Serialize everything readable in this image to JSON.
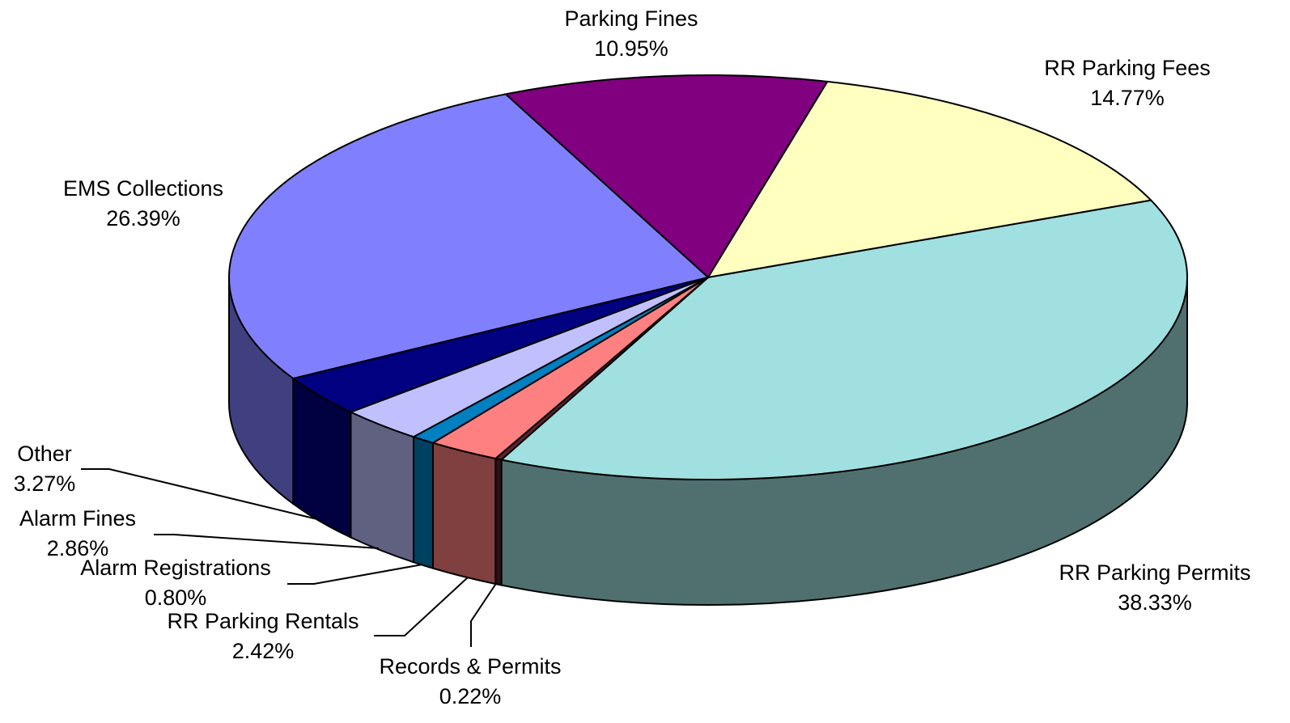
{
  "chart_data": {
    "type": "pie3d",
    "categories": [
      "Parking Fines",
      "RR Parking Fees",
      "RR Parking Permits",
      "Records & Permits",
      "RR Parking Rentals",
      "Alarm Registrations",
      "Alarm Fines",
      "Other",
      "EMS Collections"
    ],
    "values": [
      10.95,
      14.77,
      38.33,
      0.22,
      2.42,
      0.8,
      2.86,
      3.27,
      26.39
    ],
    "value_labels": [
      "10.95%",
      "14.77%",
      "38.33%",
      "0.22%",
      "2.42%",
      "0.80%",
      "2.86%",
      "3.27%",
      "26.39%"
    ],
    "colors": [
      "#800080",
      "#ffffc0",
      "#a0e0e0",
      "#602030",
      "#ff8080",
      "#0080c0",
      "#c0c0ff",
      "#000080",
      "#8080ff"
    ]
  }
}
